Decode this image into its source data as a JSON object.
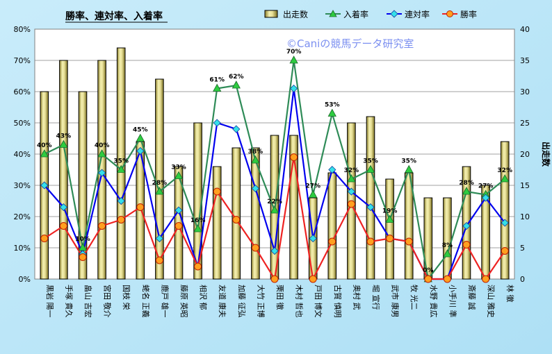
{
  "chart_data": {
    "type": "bar",
    "title": "勝率、連対率、入着率",
    "watermark": "©Caniの競馬データ研究室",
    "xlabel": "",
    "ylabel_left": "",
    "ylabel_right": "出走数",
    "ylim_left": [
      0,
      80
    ],
    "ylim_right": [
      0,
      40
    ],
    "left_ticks": [
      "0%",
      "10%",
      "20%",
      "30%",
      "40%",
      "50%",
      "60%",
      "70%",
      "80%"
    ],
    "right_ticks": [
      "0",
      "5",
      "10",
      "15",
      "20",
      "25",
      "30",
      "35",
      "40"
    ],
    "legend_position": "top",
    "grid": true,
    "categories": [
      "黒岩 陽一",
      "手塚 貴久",
      "畠山 吉宏",
      "宮田 敬介",
      "国枝 栄",
      "蛯名 正義",
      "鹿戸 雄一",
      "藤原 英昭",
      "相沢 郁",
      "友道 康夫",
      "加藤 征弘",
      "大竹 正博",
      "栗田 徹",
      "木村 哲也",
      "戸田 博文",
      "古賀 慎明",
      "奥村 武",
      "堀 宣行",
      "武市 康男",
      "牧 光二",
      "水野 貴広",
      "小手川 準",
      "斎藤 誠",
      "深山 雅史",
      "林 徹"
    ],
    "series": [
      {
        "name": "出走数",
        "axis": "right",
        "kind": "bar",
        "color": "#e8e098",
        "values": [
          30,
          35,
          30,
          35,
          37,
          22,
          32,
          18,
          25,
          18,
          21,
          21,
          23,
          23,
          13,
          17,
          25,
          26,
          16,
          17,
          13,
          13,
          18,
          15,
          22
        ]
      },
      {
        "name": "入着率",
        "axis": "left",
        "kind": "line",
        "color": "#2e8b57",
        "values": [
          40,
          43,
          10,
          40,
          35,
          45,
          28,
          33,
          16,
          61,
          62,
          38,
          22,
          70,
          27,
          53,
          32,
          35,
          19,
          35,
          0,
          8,
          28,
          27,
          32
        ],
        "labels": [
          "40%",
          "43%",
          "10%",
          "40%",
          "35%",
          "45%",
          "28%",
          "33%",
          "16%",
          "61%",
          "62%",
          "38%",
          "22%",
          "70%",
          "27%",
          "53%",
          "32%",
          "35%",
          "19%",
          "35%",
          "0%",
          "8%",
          "28%",
          "27%",
          "32%"
        ]
      },
      {
        "name": "連対率",
        "axis": "left",
        "kind": "line",
        "color": "#0000ee",
        "values": [
          30,
          23,
          8,
          34,
          25,
          41,
          13,
          22,
          4,
          50,
          48,
          29,
          9,
          61,
          13,
          35,
          28,
          23,
          13,
          12,
          0,
          0,
          17,
          26,
          18
        ]
      },
      {
        "name": "勝率",
        "axis": "left",
        "kind": "line",
        "color": "#ee2222",
        "values": [
          13,
          17,
          7,
          17,
          19,
          23,
          6,
          17,
          4,
          28,
          19,
          10,
          0,
          39,
          0,
          12,
          24,
          12,
          13,
          12,
          0,
          0,
          11,
          0,
          9
        ]
      }
    ]
  }
}
